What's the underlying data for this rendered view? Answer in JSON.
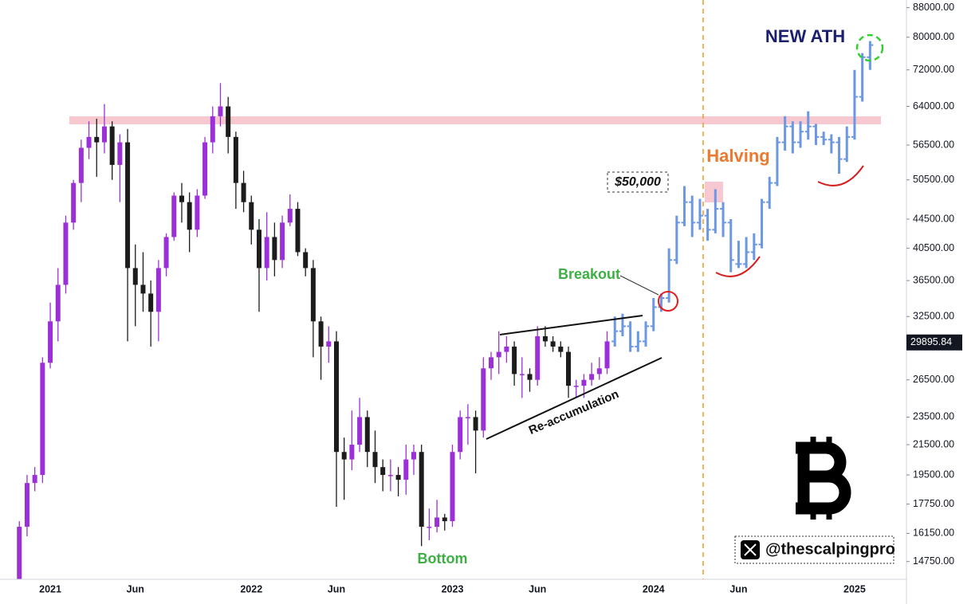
{
  "chart_data": {
    "type": "candlestick",
    "categories": [
      null,
      null,
      null,
      null,
      null,
      null,
      "2021",
      null,
      null,
      null,
      null,
      null,
      null,
      null,
      null,
      null,
      null,
      "Jun",
      null,
      null,
      null,
      null,
      null,
      null,
      null,
      null,
      null,
      null,
      null,
      null,
      null,
      null,
      "2022",
      null,
      null,
      null,
      null,
      null,
      null,
      null,
      null,
      null,
      null,
      "Jun",
      null,
      null,
      null,
      null,
      null,
      null,
      null,
      null,
      null,
      null,
      null,
      null,
      null,
      null,
      "2023",
      null,
      null,
      null,
      null,
      null,
      null,
      null,
      null,
      null,
      null,
      "Jun",
      null,
      null,
      null,
      null,
      null,
      null,
      null,
      null,
      null,
      null,
      null,
      null,
      null,
      null,
      "2024",
      null,
      null,
      null,
      null,
      null,
      null,
      null,
      null,
      null,
      null,
      "Jun",
      null,
      null,
      null,
      null,
      null,
      null,
      null,
      null,
      null,
      null,
      null,
      null,
      null,
      null,
      "2025",
      null,
      null,
      null,
      null,
      null,
      null
    ],
    "series": [
      {
        "style": "candle",
        "color": "#9b30d9",
        "down_color": "#1c1c1c",
        "open": [
          null,
          null,
          13800,
          16500,
          19000,
          19500,
          28000,
          32000,
          36000,
          44000,
          50000,
          56000,
          58000,
          57000,
          60000,
          53000,
          57000,
          38000,
          36000,
          35000,
          33000,
          38000,
          42000,
          48000,
          47000,
          43000,
          48000,
          57000,
          62000,
          64000,
          58000,
          50000,
          47000,
          43000,
          38000,
          42000,
          39000,
          44000,
          46000,
          40000,
          38000,
          32000,
          29500,
          30000,
          21000,
          20500,
          21500,
          23500,
          21000,
          20000,
          19500,
          19500,
          19200,
          20500,
          21000,
          16500,
          16500,
          17000,
          16800,
          21000,
          23500,
          23500,
          22500,
          27500,
          28500,
          29000,
          29500,
          27000,
          27000,
          26500,
          30500,
          30000,
          29500,
          29000,
          26000,
          26000,
          26500,
          27000,
          27500,
          null,
          null,
          null,
          null,
          null,
          null,
          null,
          null,
          null,
          null,
          null,
          null,
          null,
          null,
          null,
          null,
          null,
          null,
          null,
          null,
          null,
          null,
          null,
          null,
          null,
          null,
          null,
          null,
          null,
          null,
          null,
          null,
          null,
          null,
          null,
          null,
          null
        ],
        "high": [
          null,
          null,
          16800,
          19500,
          20000,
          28500,
          34000,
          38000,
          45000,
          50500,
          57500,
          61000,
          61500,
          64500,
          61000,
          58500,
          59500,
          41000,
          40000,
          36500,
          39000,
          42500,
          48500,
          50000,
          48500,
          49000,
          58000,
          64000,
          69000,
          66000,
          59000,
          52000,
          48000,
          44500,
          45500,
          44000,
          45000,
          48200,
          47000,
          40500,
          39000,
          32500,
          31500,
          31000,
          22000,
          24000,
          25000,
          24000,
          22500,
          20500,
          20500,
          20000,
          21500,
          21500,
          21500,
          17500,
          18000,
          17200,
          21500,
          24000,
          24500,
          24000,
          28500,
          29000,
          31000,
          30500,
          30000,
          28500,
          27500,
          31500,
          31500,
          30500,
          30000,
          29500,
          26500,
          27000,
          28000,
          28500,
          31000,
          null,
          null,
          null,
          null,
          null,
          null,
          null,
          null,
          null,
          null,
          null,
          null,
          null,
          null,
          null,
          null,
          null,
          null,
          null,
          null,
          null,
          null,
          null,
          null,
          null,
          null,
          null,
          null,
          null,
          null,
          null,
          null,
          null,
          null,
          null,
          null,
          null
        ],
        "low": [
          null,
          null,
          13500,
          16000,
          18500,
          19000,
          27500,
          30000,
          35000,
          43000,
          47000,
          54000,
          51000,
          55000,
          50500,
          47000,
          30000,
          31500,
          33000,
          29500,
          30000,
          37000,
          41500,
          44000,
          40000,
          42000,
          47500,
          55000,
          60000,
          55000,
          46000,
          45500,
          41000,
          33000,
          36500,
          37000,
          38000,
          43500,
          39500,
          37000,
          28500,
          26500,
          28000,
          17600,
          18000,
          19800,
          21000,
          20000,
          19000,
          18500,
          18500,
          18200,
          18300,
          19500,
          15500,
          15800,
          16200,
          16300,
          16500,
          20500,
          21500,
          19600,
          22000,
          26500,
          27000,
          28000,
          26000,
          25000,
          25500,
          26000,
          29500,
          29000,
          28500,
          25000,
          25000,
          25000,
          26000,
          26500,
          27000,
          null,
          null,
          null,
          null,
          null,
          null,
          null,
          null,
          null,
          null,
          null,
          null,
          null,
          null,
          null,
          null,
          null,
          null,
          null,
          null,
          null,
          null,
          null,
          null,
          null,
          null,
          null,
          null,
          null,
          null,
          null,
          null,
          null,
          null,
          null,
          null,
          null
        ],
        "close": [
          null,
          null,
          16500,
          19000,
          19500,
          28000,
          32000,
          36000,
          44000,
          50000,
          56000,
          58000,
          57000,
          60000,
          53000,
          57000,
          38000,
          36000,
          35000,
          33000,
          38000,
          42000,
          48000,
          47000,
          43000,
          48000,
          57000,
          62000,
          64000,
          58000,
          50000,
          47000,
          43000,
          38000,
          42000,
          39000,
          44000,
          46000,
          40000,
          38000,
          32000,
          29500,
          30000,
          21000,
          20500,
          21500,
          23500,
          21000,
          20000,
          19500,
          19500,
          19200,
          20500,
          21000,
          16500,
          16500,
          17000,
          16800,
          21000,
          23500,
          23500,
          22500,
          27500,
          28500,
          29000,
          29500,
          27000,
          27000,
          26500,
          30500,
          30000,
          29500,
          29000,
          26000,
          26000,
          26500,
          27000,
          27500,
          30000,
          null,
          null,
          null,
          null,
          null,
          null,
          null,
          null,
          null,
          null,
          null,
          null,
          null,
          null,
          null,
          null,
          null,
          null,
          null,
          null,
          null,
          null,
          null,
          null,
          null,
          null,
          null,
          null,
          null,
          null,
          null,
          null,
          null,
          null,
          null,
          null,
          null
        ]
      },
      {
        "style": "ohlc",
        "color": "#6b97e3",
        "open": [
          null,
          null,
          null,
          null,
          null,
          null,
          null,
          null,
          null,
          null,
          null,
          null,
          null,
          null,
          null,
          null,
          null,
          null,
          null,
          null,
          null,
          null,
          null,
          null,
          null,
          null,
          null,
          null,
          null,
          null,
          null,
          null,
          null,
          null,
          null,
          null,
          null,
          null,
          null,
          null,
          null,
          null,
          null,
          null,
          null,
          null,
          null,
          null,
          null,
          null,
          null,
          null,
          null,
          null,
          null,
          null,
          null,
          null,
          null,
          null,
          null,
          null,
          null,
          null,
          null,
          null,
          null,
          null,
          null,
          null,
          null,
          null,
          null,
          null,
          null,
          null,
          null,
          null,
          null,
          30000,
          31000,
          31500,
          29500,
          30000,
          31500,
          33500,
          34500,
          39000,
          44000,
          47000,
          44000,
          45000,
          43000,
          46000,
          44000,
          38500,
          38500,
          40000,
          41000,
          47000,
          50000,
          57000,
          60000,
          57000,
          59000,
          60000,
          58000,
          57500,
          57000,
          54000,
          58000,
          66000,
          75000,
          null,
          null,
          null,
          null
        ],
        "high": [
          null,
          null,
          null,
          null,
          null,
          null,
          null,
          null,
          null,
          null,
          null,
          null,
          null,
          null,
          null,
          null,
          null,
          null,
          null,
          null,
          null,
          null,
          null,
          null,
          null,
          null,
          null,
          null,
          null,
          null,
          null,
          null,
          null,
          null,
          null,
          null,
          null,
          null,
          null,
          null,
          null,
          null,
          null,
          null,
          null,
          null,
          null,
          null,
          null,
          null,
          null,
          null,
          null,
          null,
          null,
          null,
          null,
          null,
          null,
          null,
          null,
          null,
          null,
          null,
          null,
          null,
          null,
          null,
          null,
          null,
          null,
          null,
          null,
          null,
          null,
          null,
          null,
          null,
          null,
          32500,
          32800,
          32000,
          31000,
          32000,
          34500,
          35000,
          40500,
          45000,
          49500,
          48000,
          47500,
          46000,
          49000,
          47000,
          44500,
          41500,
          42000,
          42500,
          47500,
          51000,
          58000,
          62000,
          61000,
          61000,
          63000,
          60500,
          59000,
          58500,
          58000,
          60000,
          72000,
          76000,
          79000,
          null,
          null,
          null,
          null
        ],
        "low": [
          null,
          null,
          null,
          null,
          null,
          null,
          null,
          null,
          null,
          null,
          null,
          null,
          null,
          null,
          null,
          null,
          null,
          null,
          null,
          null,
          null,
          null,
          null,
          null,
          null,
          null,
          null,
          null,
          null,
          null,
          null,
          null,
          null,
          null,
          null,
          null,
          null,
          null,
          null,
          null,
          null,
          null,
          null,
          null,
          null,
          null,
          null,
          null,
          null,
          null,
          null,
          null,
          null,
          null,
          null,
          null,
          null,
          null,
          null,
          null,
          null,
          null,
          null,
          null,
          null,
          null,
          null,
          null,
          null,
          null,
          null,
          null,
          null,
          null,
          null,
          null,
          null,
          null,
          null,
          29500,
          30500,
          29000,
          29000,
          29500,
          31000,
          33000,
          34000,
          38500,
          43500,
          42000,
          43000,
          41500,
          42500,
          42000,
          37500,
          38000,
          38000,
          39000,
          40500,
          46000,
          49500,
          55500,
          55000,
          56000,
          57500,
          56500,
          56500,
          55000,
          51500,
          53500,
          57500,
          65000,
          72000,
          null,
          null,
          null,
          null
        ],
        "close": [
          null,
          null,
          null,
          null,
          null,
          null,
          null,
          null,
          null,
          null,
          null,
          null,
          null,
          null,
          null,
          null,
          null,
          null,
          null,
          null,
          null,
          null,
          null,
          null,
          null,
          null,
          null,
          null,
          null,
          null,
          null,
          null,
          null,
          null,
          null,
          null,
          null,
          null,
          null,
          null,
          null,
          null,
          null,
          null,
          null,
          null,
          null,
          null,
          null,
          null,
          null,
          null,
          null,
          null,
          null,
          null,
          null,
          null,
          null,
          null,
          null,
          null,
          null,
          null,
          null,
          null,
          null,
          null,
          null,
          null,
          null,
          null,
          null,
          null,
          null,
          null,
          null,
          null,
          null,
          31000,
          31500,
          29500,
          30000,
          31500,
          33500,
          34500,
          39000,
          44000,
          47000,
          44000,
          45000,
          43000,
          46000,
          44000,
          39000,
          38500,
          40000,
          41000,
          47000,
          50000,
          57000,
          60000,
          57000,
          59000,
          60000,
          58000,
          57500,
          57000,
          54000,
          58000,
          66000,
          75000,
          78000,
          null,
          null,
          null,
          null
        ]
      }
    ],
    "log_scale": true,
    "ylim": [
      14000,
      90200
    ],
    "yticks": [
      {
        "value": 88000,
        "label": "88000.00"
      },
      {
        "value": 80000,
        "label": "80000.00"
      },
      {
        "value": 72000,
        "label": "72000.00"
      },
      {
        "value": 64000,
        "label": "64000.00"
      },
      {
        "value": 56500,
        "label": "56500.00"
      },
      {
        "value": 50500,
        "label": "50500.00"
      },
      {
        "value": 44500,
        "label": "44500.00"
      },
      {
        "value": 40500,
        "label": "40500.00"
      },
      {
        "value": 36500,
        "label": "36500.00"
      },
      {
        "value": 32500,
        "label": "32500.00"
      },
      {
        "value": 26500,
        "label": "26500.00"
      },
      {
        "value": 23500,
        "label": "23500.00"
      },
      {
        "value": 21500,
        "label": "21500.00"
      },
      {
        "value": 19500,
        "label": "19500.00"
      },
      {
        "value": 17750,
        "label": "17750.00"
      },
      {
        "value": 16150,
        "label": "16150.00"
      },
      {
        "value": 14750,
        "label": "14750.00"
      }
    ],
    "last_price": {
      "value": 29895.84,
      "label": "29895.84"
    },
    "annotations": {
      "new_ath": "NEW ATH",
      "halving": "Halving",
      "level": "$50,000",
      "breakout": "Breakout",
      "reaccumulation": "Re-accumulation",
      "bottom": "Bottom"
    },
    "watermark": "@thescalpingpro"
  }
}
